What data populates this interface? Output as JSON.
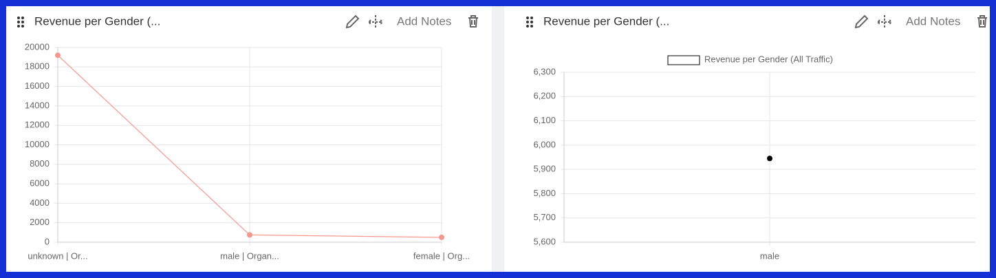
{
  "widgets": [
    {
      "title": "Revenue per Gender (...",
      "action": "Add Notes"
    },
    {
      "title": "Revenue per Gender (...",
      "action": "Add Notes"
    }
  ],
  "chart_data": [
    {
      "type": "line",
      "categories": [
        "unknown | Or...",
        "male | Organ...",
        "female | Org..."
      ],
      "values": [
        19200,
        750,
        500
      ],
      "color": "#f4978e",
      "ylim": [
        0,
        20000
      ],
      "yticks": [
        0,
        2000,
        4000,
        6000,
        8000,
        10000,
        12000,
        14000,
        16000,
        18000,
        20000
      ],
      "grid": true
    },
    {
      "type": "line",
      "categories": [
        "male"
      ],
      "series": [
        {
          "name": "Revenue per Gender (All Traffic)",
          "color": "#000000",
          "values": [
            5945
          ]
        }
      ],
      "ylim": [
        5600,
        6300
      ],
      "yticks": [
        {
          "value": 5600,
          "label": "5,600"
        },
        {
          "value": 5700,
          "label": "5,700"
        },
        {
          "value": 5800,
          "label": "5,800"
        },
        {
          "value": 5900,
          "label": "5,900"
        },
        {
          "value": 6000,
          "label": "6,000"
        },
        {
          "value": 6100,
          "label": "6,100"
        },
        {
          "value": 6200,
          "label": "6,200"
        },
        {
          "value": 6300,
          "label": "6,300"
        }
      ],
      "grid": true,
      "legend": "top"
    }
  ]
}
